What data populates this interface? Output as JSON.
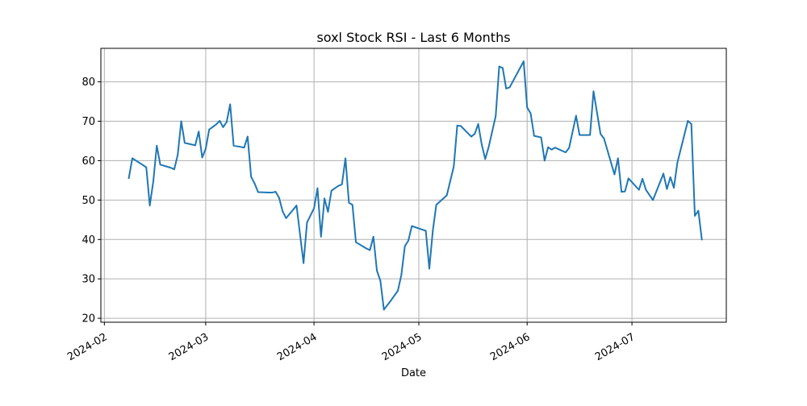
{
  "chart_data": {
    "type": "line",
    "title": "soxl Stock RSI - Last 6 Months",
    "xlabel": "Date",
    "ylabel": "",
    "xlim": [
      "2024-01-31",
      "2024-07-28"
    ],
    "ylim": [
      19,
      88.5
    ],
    "grid": true,
    "x_ticks": [
      "2024-02-01",
      "2024-03-01",
      "2024-04-01",
      "2024-05-01",
      "2024-06-01",
      "2024-07-01"
    ],
    "x_tick_labels": [
      "2024-02",
      "2024-03",
      "2024-04",
      "2024-05",
      "2024-06",
      "2024-07"
    ],
    "y_ticks": [
      20,
      30,
      40,
      50,
      60,
      70,
      80
    ],
    "y_tick_labels": [
      "20",
      "30",
      "40",
      "50",
      "60",
      "70",
      "80"
    ],
    "series": [
      {
        "color": "#1f77b4",
        "points": [
          [
            "2024-02-08",
            55.6
          ],
          [
            "2024-02-09",
            60.6
          ],
          [
            "2024-02-12",
            58.9
          ],
          [
            "2024-02-13",
            58.3
          ],
          [
            "2024-02-14",
            48.6
          ],
          [
            "2024-02-15",
            54.7
          ],
          [
            "2024-02-16",
            63.8
          ],
          [
            "2024-02-17",
            59.0
          ],
          [
            "2024-02-20",
            58.2
          ],
          [
            "2024-02-21",
            57.8
          ],
          [
            "2024-02-22",
            61.5
          ],
          [
            "2024-02-23",
            70.0
          ],
          [
            "2024-02-24",
            64.5
          ],
          [
            "2024-02-27",
            63.9
          ],
          [
            "2024-02-28",
            67.4
          ],
          [
            "2024-02-29",
            60.8
          ],
          [
            "2024-03-01",
            63.0
          ],
          [
            "2024-03-02",
            67.9
          ],
          [
            "2024-03-04",
            69.2
          ],
          [
            "2024-03-05",
            70.1
          ],
          [
            "2024-03-06",
            68.5
          ],
          [
            "2024-03-07",
            69.8
          ],
          [
            "2024-03-08",
            74.3
          ],
          [
            "2024-03-09",
            63.8
          ],
          [
            "2024-03-11",
            63.5
          ],
          [
            "2024-03-12",
            63.3
          ],
          [
            "2024-03-13",
            66.1
          ],
          [
            "2024-03-14",
            55.9
          ],
          [
            "2024-03-15",
            54.2
          ],
          [
            "2024-03-16",
            52.0
          ],
          [
            "2024-03-19",
            51.9
          ],
          [
            "2024-03-20",
            51.9
          ],
          [
            "2024-03-21",
            52.1
          ],
          [
            "2024-03-22",
            50.6
          ],
          [
            "2024-03-23",
            47.2
          ],
          [
            "2024-03-24",
            45.4
          ],
          [
            "2024-03-27",
            48.6
          ],
          [
            "2024-03-29",
            34.0
          ],
          [
            "2024-03-30",
            44.3
          ],
          [
            "2024-04-01",
            47.9
          ],
          [
            "2024-04-02",
            53.0
          ],
          [
            "2024-04-03",
            40.7
          ],
          [
            "2024-04-04",
            50.4
          ],
          [
            "2024-04-05",
            47.0
          ],
          [
            "2024-04-06",
            52.4
          ],
          [
            "2024-04-08",
            53.6
          ],
          [
            "2024-04-09",
            54.0
          ],
          [
            "2024-04-10",
            60.6
          ],
          [
            "2024-04-11",
            49.3
          ],
          [
            "2024-04-12",
            48.8
          ],
          [
            "2024-04-13",
            39.3
          ],
          [
            "2024-04-16",
            37.7
          ],
          [
            "2024-04-17",
            37.3
          ],
          [
            "2024-04-18",
            40.7
          ],
          [
            "2024-04-19",
            32.1
          ],
          [
            "2024-04-20",
            29.5
          ],
          [
            "2024-04-21",
            22.2
          ],
          [
            "2024-04-23",
            24.5
          ],
          [
            "2024-04-25",
            27.0
          ],
          [
            "2024-04-26",
            31.0
          ],
          [
            "2024-04-27",
            38.3
          ],
          [
            "2024-04-28",
            39.7
          ],
          [
            "2024-04-29",
            43.4
          ],
          [
            "2024-05-02",
            42.5
          ],
          [
            "2024-05-03",
            42.2
          ],
          [
            "2024-05-04",
            32.6
          ],
          [
            "2024-05-05",
            42.2
          ],
          [
            "2024-05-06",
            48.8
          ],
          [
            "2024-05-09",
            51.2
          ],
          [
            "2024-05-11",
            58.5
          ],
          [
            "2024-05-12",
            68.9
          ],
          [
            "2024-05-13",
            68.8
          ],
          [
            "2024-05-16",
            66.1
          ],
          [
            "2024-05-17",
            66.8
          ],
          [
            "2024-05-18",
            69.3
          ],
          [
            "2024-05-19",
            64.1
          ],
          [
            "2024-05-20",
            60.4
          ],
          [
            "2024-05-21",
            63.5
          ],
          [
            "2024-05-23",
            71.3
          ],
          [
            "2024-05-24",
            83.9
          ],
          [
            "2024-05-25",
            83.5
          ],
          [
            "2024-05-26",
            78.3
          ],
          [
            "2024-05-27",
            78.6
          ],
          [
            "2024-05-31",
            85.2
          ],
          [
            "2024-06-01",
            73.5
          ],
          [
            "2024-06-02",
            72.0
          ],
          [
            "2024-06-03",
            66.3
          ],
          [
            "2024-06-05",
            65.9
          ],
          [
            "2024-06-06",
            60.0
          ],
          [
            "2024-06-07",
            63.4
          ],
          [
            "2024-06-08",
            62.8
          ],
          [
            "2024-06-09",
            63.3
          ],
          [
            "2024-06-12",
            62.1
          ],
          [
            "2024-06-13",
            63.2
          ],
          [
            "2024-06-15",
            71.4
          ],
          [
            "2024-06-16",
            66.5
          ],
          [
            "2024-06-19",
            66.5
          ],
          [
            "2024-06-20",
            77.6
          ],
          [
            "2024-06-22",
            66.8
          ],
          [
            "2024-06-23",
            65.6
          ],
          [
            "2024-06-26",
            56.5
          ],
          [
            "2024-06-27",
            60.6
          ],
          [
            "2024-06-28",
            52.1
          ],
          [
            "2024-06-29",
            52.2
          ],
          [
            "2024-06-30",
            55.5
          ],
          [
            "2024-07-03",
            52.6
          ],
          [
            "2024-07-04",
            55.4
          ],
          [
            "2024-07-05",
            52.6
          ],
          [
            "2024-07-07",
            50.0
          ],
          [
            "2024-07-10",
            56.7
          ],
          [
            "2024-07-11",
            52.8
          ],
          [
            "2024-07-12",
            55.8
          ],
          [
            "2024-07-13",
            53.1
          ],
          [
            "2024-07-14",
            59.5
          ],
          [
            "2024-07-17",
            70.1
          ],
          [
            "2024-07-18",
            69.3
          ],
          [
            "2024-07-19",
            46.0
          ],
          [
            "2024-07-20",
            47.3
          ],
          [
            "2024-07-21",
            40.0
          ]
        ]
      }
    ]
  }
}
